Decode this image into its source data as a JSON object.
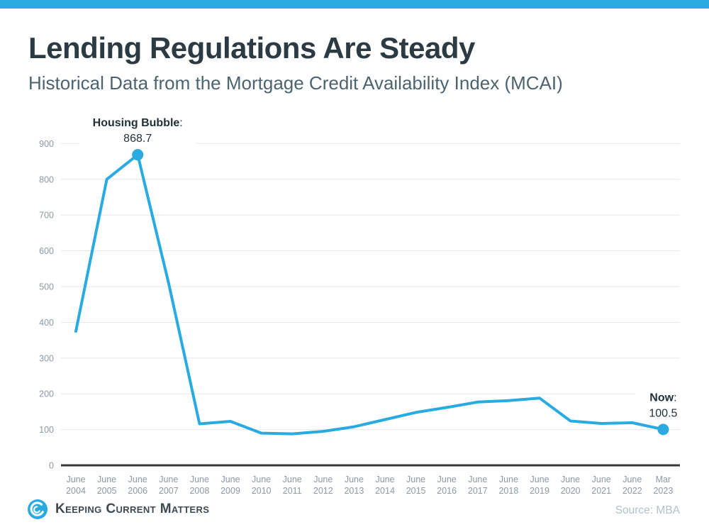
{
  "header": {
    "title": "Lending Regulations Are Steady",
    "subtitle": "Historical Data from the Mortgage Credit Availability Index (MCAI)"
  },
  "footer": {
    "brand": "Keeping Current Matters",
    "source": "Source: MBA"
  },
  "colors": {
    "accent_blue": "#29abe2",
    "line_blue": "#29abe2",
    "title_text": "#2c3a43",
    "subtitle_text": "#4d6470",
    "axis_text": "#8d99a6",
    "axis_line": "#33383e",
    "gridline": "#e4e7ea",
    "annotation_text": "#22313a",
    "source_text": "#b5c1cb"
  },
  "chart_data": {
    "type": "line",
    "title": "Mortgage Credit Availability Index (MCAI)",
    "categories": [
      "June 2004",
      "June 2005",
      "June 2006",
      "June 2007",
      "June 2008",
      "June 2009",
      "June 2010",
      "June 2011",
      "June 2012",
      "June 2013",
      "June 2014",
      "June 2015",
      "June 2016",
      "June 2017",
      "June 2018",
      "June 2019",
      "June 2020",
      "June 2021",
      "June 2022",
      "Mar 2023"
    ],
    "values": [
      375,
      800,
      868.7,
      510,
      116,
      123,
      90,
      88,
      95,
      108,
      128,
      148,
      162,
      177,
      181,
      188,
      124,
      117,
      119,
      100.5
    ],
    "ylim": [
      0,
      900
    ],
    "ytick_step": 100,
    "grid": "horizontal",
    "legend": "none",
    "line_color": "#29abe2",
    "markers": [
      {
        "index": 2,
        "label": "Housing Bubble",
        "value": "868.7"
      },
      {
        "index": 19,
        "label": "Now",
        "value": "100.5"
      }
    ]
  }
}
